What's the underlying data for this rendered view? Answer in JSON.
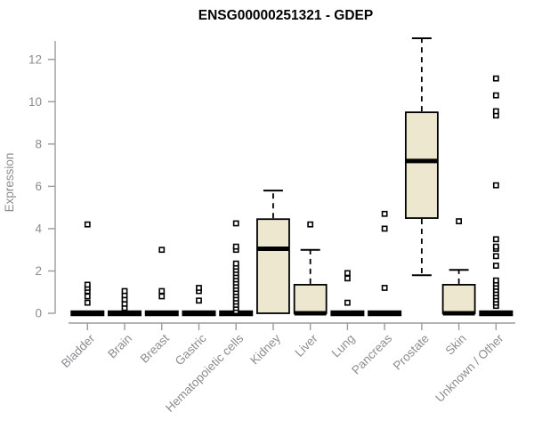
{
  "chart_data": {
    "type": "boxplot",
    "title": "ENSG00000251321 - GDEP",
    "ylabel": "Expression",
    "xlabel": "",
    "ylim": [
      0,
      13.2
    ],
    "yticks": [
      0,
      2,
      4,
      6,
      8,
      10,
      12
    ],
    "grid": false,
    "legend": "none",
    "box_fill_color": "#ECE7CE",
    "box_line_color": "#000000",
    "axis_color": "#9B9B9B",
    "label_color": "#8A8D90",
    "categories": [
      "Bladder",
      "Brain",
      "Breast",
      "Gastric",
      "Hematopoietic cells",
      "Kidney",
      "Liver",
      "Lung",
      "Pancreas",
      "Prostate",
      "Skin",
      "Unknown / Other"
    ],
    "boxes": [
      {
        "category": "Bladder",
        "whisker_low": 0,
        "q1": 0,
        "median": 0,
        "q3": 0,
        "whisker_high": 0,
        "outliers": [
          0.5,
          0.8,
          1.05,
          1.2,
          1.35,
          4.2
        ]
      },
      {
        "category": "Brain",
        "whisker_low": 0,
        "q1": 0,
        "median": 0,
        "q3": 0,
        "whisker_high": 0,
        "outliers": [
          0.25,
          0.45,
          0.65,
          0.85,
          1.05
        ]
      },
      {
        "category": "Breast",
        "whisker_low": 0,
        "q1": 0,
        "median": 0,
        "q3": 0,
        "whisker_high": 0,
        "outliers": [
          0.8,
          1.05,
          3.0
        ]
      },
      {
        "category": "Gastric",
        "whisker_low": 0,
        "q1": 0,
        "median": 0,
        "q3": 0,
        "whisker_high": 0,
        "outliers": [
          0.6,
          1.05,
          1.2
        ]
      },
      {
        "category": "Hematopoietic cells",
        "whisker_low": 0,
        "q1": 0,
        "median": 0,
        "q3": 0,
        "whisker_high": 0,
        "outliers": [
          0.1,
          0.25,
          0.4,
          0.55,
          0.7,
          0.85,
          1.0,
          1.15,
          1.3,
          1.45,
          1.6,
          1.75,
          1.9,
          2.05,
          2.2,
          2.35,
          3.0,
          3.15,
          4.25
        ]
      },
      {
        "category": "Kidney",
        "whisker_low": 0,
        "q1": 0,
        "median": 3.05,
        "q3": 4.45,
        "whisker_high": 5.8,
        "outliers": []
      },
      {
        "category": "Liver",
        "whisker_low": 0,
        "q1": 0,
        "median": 0,
        "q3": 1.35,
        "whisker_high": 3.0,
        "outliers": [
          4.2
        ]
      },
      {
        "category": "Lung",
        "whisker_low": 0,
        "q1": 0,
        "median": 0,
        "q3": 0,
        "whisker_high": 0,
        "outliers": [
          0.5,
          1.65,
          1.9
        ]
      },
      {
        "category": "Pancreas",
        "whisker_low": 0,
        "q1": 0,
        "median": 0,
        "q3": 0,
        "whisker_high": 0,
        "outliers": [
          1.2,
          4.0,
          4.7
        ]
      },
      {
        "category": "Prostate",
        "whisker_low": 1.8,
        "q1": 4.5,
        "median": 7.2,
        "q3": 9.5,
        "whisker_high": 13.0,
        "outliers": []
      },
      {
        "category": "Skin",
        "whisker_low": 0,
        "q1": 0,
        "median": 0,
        "q3": 1.35,
        "whisker_high": 2.05,
        "outliers": [
          4.35
        ]
      },
      {
        "category": "Unknown / Other",
        "whisker_low": 0,
        "q1": 0,
        "median": 0,
        "q3": 0,
        "whisker_high": 0,
        "outliers": [
          0.35,
          0.5,
          0.65,
          0.8,
          0.95,
          1.1,
          1.25,
          1.4,
          1.55,
          2.25,
          2.7,
          3.05,
          3.15,
          3.5,
          6.05,
          9.35,
          9.55,
          10.3,
          11.1
        ]
      }
    ]
  }
}
